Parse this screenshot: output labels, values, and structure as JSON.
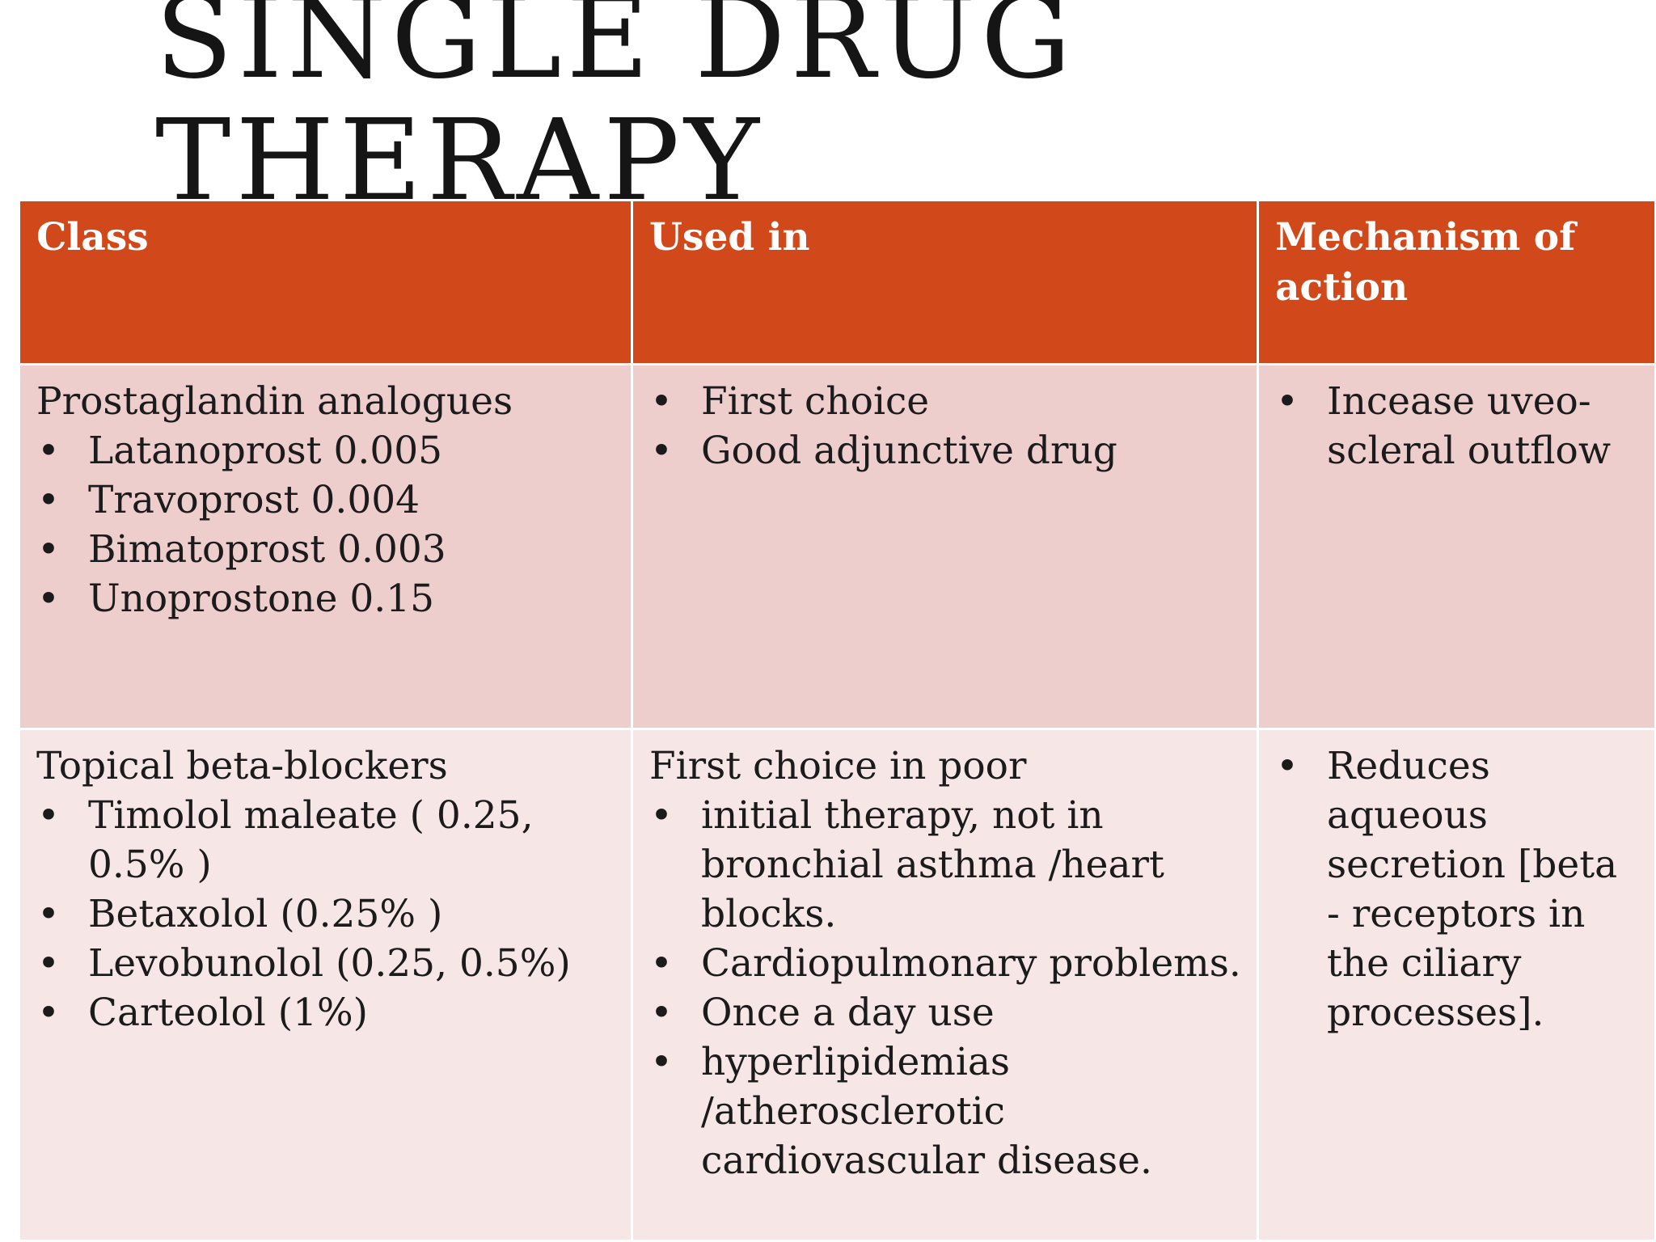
{
  "slide": {
    "title_line1": "SINGLE DRUG",
    "title_line2": "THERAPY"
  },
  "table": {
    "headers": [
      "Class",
      "Used in",
      "Mechanism of action"
    ],
    "rows": [
      {
        "class_heading": "Prostaglandin analogues",
        "class_items": [
          "Latanoprost 0.005",
          "Travoprost 0.004",
          "Bimatoprost 0.003",
          "Unoprostone 0.15"
        ],
        "used_heading": "",
        "used_items": [
          "First choice",
          "Good adjunctive drug"
        ],
        "mechanism_items": [
          "Incease uveo-scleral outflow"
        ]
      },
      {
        "class_heading": "Topical beta-blockers",
        "class_items": [
          "Timolol maleate ( 0.25, 0.5% )",
          "Betaxolol (0.25% )",
          "Levobunolol (0.25, 0.5%)",
          "Carteolol (1%)"
        ],
        "used_heading": "First choice in poor",
        "used_items": [
          "initial therapy, not  in bronchial asthma /heart blocks.",
          "Cardiopulmonary problems.",
          "Once a day use",
          "hyperlipidemias /atherosclerotic cardiovascular disease."
        ],
        "mechanism_items": [
          "Reduces aqueous secretion [beta - receptors in the ciliary processes]."
        ]
      }
    ]
  },
  "bullet_symbol": "•",
  "colors": {
    "header_bg": "#d1491b",
    "row_odd_bg": "#eecdcd",
    "row_even_bg": "#f6e6e6",
    "title_text": "#151515"
  }
}
